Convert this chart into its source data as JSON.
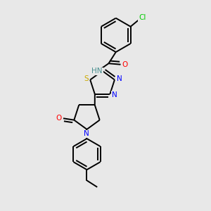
{
  "background_color": "#e8e8e8",
  "bond_color": "#000000",
  "atom_colors": {
    "N": "#0000ff",
    "O": "#ff0000",
    "S": "#ccaa00",
    "Cl": "#00cc00",
    "C": "#000000",
    "H": "#4a9090"
  },
  "figsize": [
    3.0,
    3.0
  ],
  "dpi": 100
}
